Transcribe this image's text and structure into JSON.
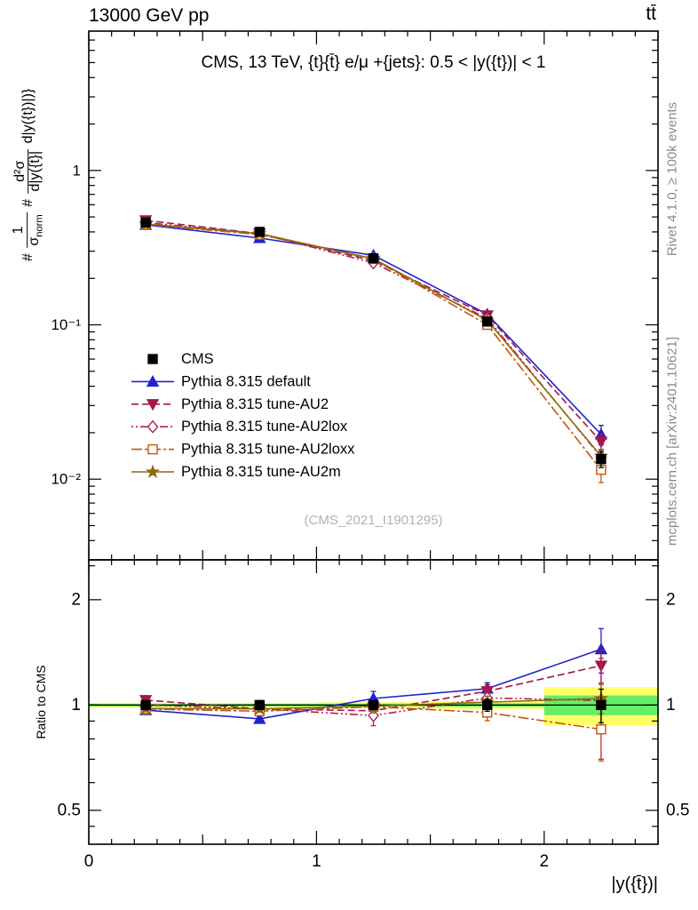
{
  "header": {
    "collision": "13000 GeV pp",
    "process": "tt̄"
  },
  "watermarks": {
    "rivet": "Rivet 4.1.0, ≥ 100k events",
    "mcplots": "mcplots.cern.ch [arXiv:2401.10621]",
    "analysis": "(CMS_2021_I1901295)"
  },
  "main_plot": {
    "title": "CMS, 13 TeV, {t}{t̄} e/μ +{jets}: 0.5 < |y({t})| < 1"
  },
  "ylabel": {
    "p1": "#",
    "num1": "1",
    "den1": "σ",
    "den1_sub": "norm",
    "p2": "#",
    "num2": "d²σ",
    "den2": "d|y({t̄}|",
    "tail": "d|y({t})|)}"
  },
  "ratio_plot": {
    "ylabel": "Ratio to CMS"
  },
  "xlabel": "|y({t̄})|",
  "chart_data": {
    "type": "line",
    "x": [
      0.25,
      0.75,
      1.25,
      1.75,
      2.25
    ],
    "xlim": [
      0,
      2.5
    ],
    "main_ylim": [
      0.003,
      8
    ],
    "ratio_ylim": [
      0.4,
      2.6
    ],
    "x_ticks": [
      {
        "v": 0,
        "label": "0"
      },
      {
        "v": 1,
        "label": "1"
      },
      {
        "v": 2,
        "label": "2"
      }
    ],
    "main_y_ticks": [
      {
        "v": 1,
        "label": "1"
      },
      {
        "v": 0.1,
        "label": "10⁻¹"
      },
      {
        "v": 0.01,
        "label": "10⁻²"
      }
    ],
    "ratio_y_ticks": [
      {
        "v": 2,
        "label": "2"
      },
      {
        "v": 1,
        "label": "1"
      },
      {
        "v": 0.5,
        "label": "0.5"
      }
    ],
    "series": [
      {
        "name": "CMS",
        "color": "#000000",
        "marker": "square",
        "filled": true,
        "dash": "",
        "line": false,
        "values": [
          0.46,
          0.4,
          0.27,
          0.105,
          0.0135
        ],
        "errors": [
          0.013,
          0.011,
          0.008,
          0.004,
          0.0016
        ],
        "ratio": [
          1,
          1,
          1,
          1,
          1
        ],
        "ratio_errors": [
          0.03,
          0.03,
          0.03,
          0.04,
          0.11
        ]
      },
      {
        "name": "Pythia 8.315 default",
        "color": "#2222cc",
        "marker": "triangle-up",
        "filled": true,
        "dash": "",
        "line": true,
        "values": [
          0.445,
          0.365,
          0.282,
          0.117,
          0.0195
        ],
        "errors": [
          0.005,
          0.004,
          0.004,
          0.003,
          0.0028
        ],
        "ratio": [
          0.967,
          0.913,
          1.044,
          1.114,
          1.444
        ],
        "ratio_errors": [
          0.02,
          0.015,
          0.05,
          0.045,
          0.21
        ]
      },
      {
        "name": "Pythia 8.315 tune-AU2",
        "color": "#a2174c",
        "marker": "triangle-down",
        "filled": true,
        "dash": "8 4",
        "line": true,
        "values": [
          0.475,
          0.39,
          0.26,
          0.115,
          0.0175
        ],
        "errors": [
          0.005,
          0.004,
          0.004,
          0.003,
          0.002
        ],
        "ratio": [
          1.033,
          0.975,
          0.963,
          1.095,
          1.296
        ],
        "ratio_errors": [
          0.03,
          0.02,
          0.03,
          0.05,
          0.14
        ]
      },
      {
        "name": "Pythia 8.315 tune-AU2lox",
        "color": "#b01e55",
        "marker": "diamond",
        "filled": false,
        "dash": "2 3 2 3 9 3",
        "line": true,
        "values": [
          0.46,
          0.39,
          0.252,
          0.11,
          0.0139
        ],
        "errors": [
          0.007,
          0.006,
          0.005,
          0.004,
          0.003
        ],
        "ratio": [
          1.0,
          0.975,
          0.933,
          1.048,
          1.03
        ],
        "ratio_errors": [
          0.04,
          0.03,
          0.06,
          0.06,
          0.33
        ]
      },
      {
        "name": "Pythia 8.315 tune-AU2loxx",
        "color": "#c2570f",
        "marker": "square",
        "filled": false,
        "dash": "12 3 3 3",
        "line": true,
        "values": [
          0.448,
          0.384,
          0.267,
          0.1,
          0.0115
        ],
        "errors": [
          0.006,
          0.005,
          0.005,
          0.004,
          0.002
        ],
        "ratio": [
          0.974,
          0.96,
          0.989,
          0.952,
          0.852
        ],
        "ratio_errors": [
          0.03,
          0.025,
          0.04,
          0.05,
          0.16
        ]
      },
      {
        "name": "Pythia 8.315 tune-AU2m",
        "color": "#8d6b08",
        "marker": "star",
        "filled": true,
        "dash": "",
        "line": true,
        "values": [
          0.45,
          0.39,
          0.268,
          0.107,
          0.0141
        ],
        "errors": [
          0.005,
          0.004,
          0.004,
          0.003,
          0.0015
        ],
        "ratio": [
          0.978,
          0.975,
          0.993,
          1.019,
          1.044
        ],
        "ratio_errors": [
          0.02,
          0.02,
          0.03,
          0.04,
          0.1
        ]
      }
    ],
    "bands": {
      "bins": [
        [
          0,
          0.5
        ],
        [
          0.5,
          1
        ],
        [
          1,
          1.5
        ],
        [
          1.5,
          2
        ],
        [
          2,
          2.5
        ]
      ],
      "yellow_half": [
        0.015,
        0.015,
        0.018,
        0.025,
        0.125
      ],
      "green_half": [
        0.008,
        0.008,
        0.009,
        0.012,
        0.065
      ],
      "yellow_color": "#ffff66",
      "green_color": "#66ee66"
    },
    "legend_position": "inside-left-bottom",
    "grid": false
  }
}
